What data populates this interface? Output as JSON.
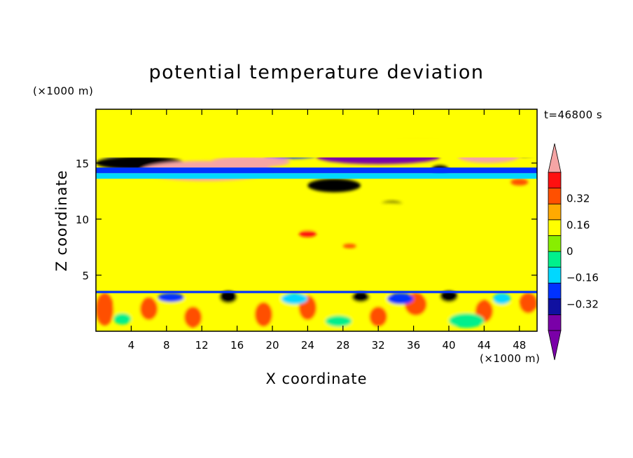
{
  "chart_data": {
    "type": "heatmap",
    "title": "potential temperature deviation",
    "xlabel": "X coordinate",
    "ylabel": "Z coordinate",
    "x_unit_label": "(×1000 m)",
    "y_unit_label": "(×1000 m)",
    "time_label": "t=46800 s",
    "xlim": [
      0,
      50
    ],
    "ylim": [
      0,
      19.8
    ],
    "x_ticks": [
      4,
      8,
      12,
      16,
      20,
      24,
      28,
      32,
      36,
      40,
      44,
      48
    ],
    "y_ticks": [
      5,
      10,
      15
    ],
    "colorbar": {
      "levels": [
        -0.48,
        -0.4,
        -0.32,
        -0.24,
        -0.16,
        -0.08,
        0,
        0.08,
        0.16,
        0.24,
        0.32,
        0.4,
        0.48
      ],
      "colors": [
        "#7a00a8",
        "#1010a0",
        "#0032ff",
        "#00d8ff",
        "#00f08c",
        "#88ee00",
        "#ffff00",
        "#ffaa00",
        "#ff5000",
        "#ff1010"
      ],
      "min_extension_color": "#7a00a8",
      "max_extension_color": "#f5a5a5",
      "tick_labels": [
        {
          "value": 0.32,
          "label": "0.32"
        },
        {
          "value": 0.16,
          "label": "0.16"
        },
        {
          "value": 0,
          "label": "0"
        },
        {
          "value": -0.16,
          "label": "−0.16"
        },
        {
          "value": -0.32,
          "label": "−0.32"
        }
      ]
    },
    "background_value": 0.02,
    "bands": [
      {
        "y0": 13.6,
        "y1": 14.1,
        "x0": 0,
        "x1": 50,
        "value": -0.2
      },
      {
        "y0": 14.1,
        "y1": 14.6,
        "x0": 0,
        "x1": 50,
        "value": -0.3
      },
      {
        "y0": 15.5,
        "y1": 17.2,
        "x0": 0,
        "x1": 50,
        "value": 0.05
      },
      {
        "y0": 3.4,
        "y1": 3.6,
        "x0": 0,
        "x1": 50,
        "value": -0.3
      }
    ],
    "features": [
      {
        "x0": 0,
        "x1": 50,
        "y0": 17.2,
        "y1": 19.8,
        "value": 0.07
      },
      {
        "x0": 7,
        "x1": 13,
        "y0": 17.4,
        "y1": 19.0,
        "value": 0.02
      },
      {
        "x0": 24,
        "x1": 30,
        "y0": 17.6,
        "y1": 19.4,
        "value": 0.02
      },
      {
        "x0": 37,
        "x1": 41,
        "y0": 17.6,
        "y1": 19.2,
        "value": 0.02
      },
      {
        "x0": 8,
        "x1": 19,
        "y0": 15.8,
        "y1": 16.8,
        "value": -0.36
      },
      {
        "x0": 25,
        "x1": 39,
        "y0": 14.9,
        "y1": 16.2,
        "value": -0.44
      },
      {
        "x0": 19,
        "x1": 25,
        "y0": 15.4,
        "y1": 16.0,
        "value": -0.3
      },
      {
        "x0": 0,
        "x1": 3,
        "y0": 15.6,
        "y1": 16.4,
        "value": -0.36
      },
      {
        "x0": 47,
        "x1": 50,
        "y0": 15.6,
        "y1": 16.4,
        "value": -0.36
      },
      {
        "x0": 42,
        "x1": 47,
        "y0": 15.6,
        "y1": 16.4,
        "value": -0.3
      },
      {
        "x0": 0,
        "x1": 10,
        "y0": 14.4,
        "y1": 15.6,
        "value": 0.44
      },
      {
        "x0": 5,
        "x1": 20,
        "y0": 13.4,
        "y1": 15.2,
        "value": 0.5
      },
      {
        "x0": 13,
        "x1": 22,
        "y0": 14.6,
        "y1": 15.6,
        "value": 0.5
      },
      {
        "x0": 32,
        "x1": 41,
        "y0": 16.0,
        "y1": 17.0,
        "value": 0.3
      },
      {
        "x0": 41,
        "x1": 48,
        "y0": 15.0,
        "y1": 16.2,
        "value": 0.5
      },
      {
        "x0": 22,
        "x1": 25,
        "y0": 15.8,
        "y1": 16.6,
        "value": 0.36
      },
      {
        "x0": 38,
        "x1": 40,
        "y0": 14.0,
        "y1": 14.8,
        "value": 0.44
      },
      {
        "x0": 24,
        "x1": 30,
        "y0": 12.4,
        "y1": 13.6,
        "value": 0.44
      },
      {
        "x0": 32,
        "x1": 35,
        "y0": 10.8,
        "y1": 11.6,
        "value": 0.44
      },
      {
        "x0": 23,
        "x1": 25,
        "y0": 8.4,
        "y1": 9.0,
        "value": 0.3
      },
      {
        "x0": 28,
        "x1": 29.5,
        "y0": 7.4,
        "y1": 7.8,
        "value": 0.2
      },
      {
        "x0": 47,
        "x1": 49,
        "y0": 13.0,
        "y1": 13.6,
        "value": 0.2
      },
      {
        "x0": 0,
        "x1": 50,
        "y0": 9.0,
        "y1": 11.5,
        "value": 0.07
      },
      {
        "x0": 3,
        "x1": 30,
        "y0": 6.0,
        "y1": 7.4,
        "value": 0.07
      },
      {
        "x0": 30,
        "x1": 50,
        "y0": 5.4,
        "y1": 7.2,
        "value": 0.07
      },
      {
        "x0": 0,
        "x1": 50,
        "y0": 4.0,
        "y1": 5.0,
        "value": 0.07
      },
      {
        "x0": 0,
        "x1": 50,
        "y0": 0,
        "y1": 3.4,
        "value": 0.07
      },
      {
        "x0": 0,
        "x1": 2,
        "y0": 0.5,
        "y1": 3.4,
        "value": 0.2
      },
      {
        "x0": 5,
        "x1": 7,
        "y0": 1.0,
        "y1": 3.0,
        "value": 0.2
      },
      {
        "x0": 10,
        "x1": 12,
        "y0": 0.3,
        "y1": 2.2,
        "value": 0.2
      },
      {
        "x0": 14,
        "x1": 16,
        "y0": 2.5,
        "y1": 3.6,
        "value": 0.44
      },
      {
        "x0": 18,
        "x1": 20,
        "y0": 0.4,
        "y1": 2.6,
        "value": 0.2
      },
      {
        "x0": 23,
        "x1": 25,
        "y0": 1.0,
        "y1": 3.2,
        "value": 0.2
      },
      {
        "x0": 29,
        "x1": 31,
        "y0": 2.6,
        "y1": 3.5,
        "value": 0.36
      },
      {
        "x0": 31,
        "x1": 33,
        "y0": 0.4,
        "y1": 2.2,
        "value": 0.2
      },
      {
        "x0": 35,
        "x1": 37.5,
        "y0": 1.4,
        "y1": 3.4,
        "value": 0.2
      },
      {
        "x0": 39,
        "x1": 41,
        "y0": 2.6,
        "y1": 3.6,
        "value": 0.44
      },
      {
        "x0": 43,
        "x1": 45,
        "y0": 0.8,
        "y1": 2.8,
        "value": 0.2
      },
      {
        "x0": 48,
        "x1": 50,
        "y0": 1.6,
        "y1": 3.4,
        "value": 0.2
      },
      {
        "x0": 7,
        "x1": 10,
        "y0": 2.6,
        "y1": 3.4,
        "value": -0.3
      },
      {
        "x0": 21,
        "x1": 24,
        "y0": 2.4,
        "y1": 3.4,
        "value": -0.2
      },
      {
        "x0": 26,
        "x1": 29,
        "y0": 0.4,
        "y1": 1.4,
        "value": -0.15
      },
      {
        "x0": 33,
        "x1": 36,
        "y0": 2.4,
        "y1": 3.4,
        "value": -0.3
      },
      {
        "x0": 40,
        "x1": 44,
        "y0": 0.3,
        "y1": 1.6,
        "value": -0.15
      },
      {
        "x0": 2,
        "x1": 4,
        "y0": 0.6,
        "y1": 1.6,
        "value": -0.15
      },
      {
        "x0": 45,
        "x1": 47,
        "y0": 2.4,
        "y1": 3.4,
        "value": -0.2
      }
    ]
  }
}
